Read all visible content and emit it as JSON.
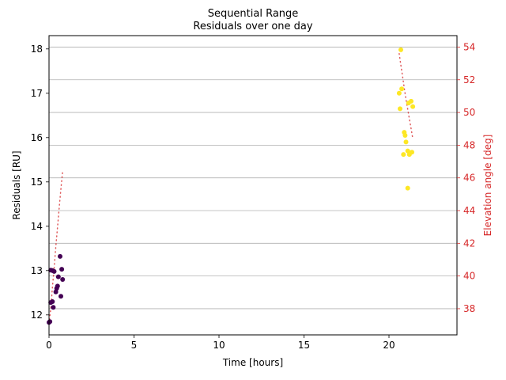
{
  "chart_data": {
    "type": "scatter",
    "title": "Sequential Range",
    "subtitle": "Residuals over one day",
    "xlabel": "Time [hours]",
    "ylabel": "Residuals [RU]",
    "y2label": "Elevation angle [deg]",
    "xlim": [
      0,
      24
    ],
    "ylim": [
      11.55,
      18.3
    ],
    "y2lim": [
      36.4,
      54.7
    ],
    "xticks": [
      "0",
      "5",
      "10",
      "15",
      "20"
    ],
    "xtick_values": [
      0,
      5,
      10,
      15,
      20
    ],
    "yticks": [
      "12",
      "13",
      "14",
      "15",
      "16",
      "17",
      "18"
    ],
    "ytick_values": [
      12,
      13,
      14,
      15,
      16,
      17,
      18
    ],
    "y2ticks": [
      "38",
      "40",
      "42",
      "44",
      "46",
      "48",
      "50",
      "52",
      "54"
    ],
    "y2tick_values": [
      38,
      40,
      42,
      44,
      46,
      48,
      50,
      52,
      54
    ],
    "grid": "y2-major",
    "colors": {
      "pass1": "#440154",
      "pass2": "#fde725",
      "elevation": "#d62728",
      "grid": "#b0b0b0",
      "axis": "#000000"
    },
    "series": [
      {
        "kind": "residuals-pass-1",
        "points": [
          [
            0.0,
            11.83
          ],
          [
            0.05,
            11.85
          ],
          [
            0.1,
            12.28
          ],
          [
            0.2,
            12.3
          ],
          [
            0.25,
            12.17
          ],
          [
            0.1,
            13.01
          ],
          [
            0.2,
            13.0
          ],
          [
            0.3,
            12.98
          ],
          [
            0.4,
            12.52
          ],
          [
            0.45,
            12.6
          ],
          [
            0.5,
            12.65
          ],
          [
            0.55,
            12.86
          ],
          [
            0.65,
            13.32
          ],
          [
            0.7,
            12.42
          ],
          [
            0.75,
            13.03
          ],
          [
            0.8,
            12.8
          ]
        ]
      },
      {
        "kind": "residuals-pass-2",
        "points": [
          [
            20.7,
            17.98
          ],
          [
            20.6,
            17.0
          ],
          [
            20.75,
            17.1
          ],
          [
            20.65,
            16.65
          ],
          [
            20.9,
            16.12
          ],
          [
            20.95,
            16.05
          ],
          [
            21.0,
            15.9
          ],
          [
            21.1,
            15.7
          ],
          [
            20.85,
            15.62
          ],
          [
            21.2,
            15.62
          ],
          [
            21.35,
            15.67
          ],
          [
            21.15,
            16.78
          ],
          [
            21.3,
            16.82
          ],
          [
            21.4,
            16.7
          ],
          [
            21.1,
            14.86
          ]
        ]
      },
      {
        "kind": "elevation-pass-1",
        "points": [
          [
            0.0,
            37.1
          ],
          [
            0.1,
            38.0
          ],
          [
            0.2,
            39.3
          ],
          [
            0.3,
            40.5
          ],
          [
            0.4,
            41.8
          ],
          [
            0.5,
            43.0
          ],
          [
            0.6,
            44.2
          ],
          [
            0.7,
            45.3
          ],
          [
            0.8,
            46.4
          ]
        ]
      },
      {
        "kind": "elevation-pass-2",
        "points": [
          [
            20.6,
            53.6
          ],
          [
            20.7,
            52.9
          ],
          [
            20.8,
            52.2
          ],
          [
            20.9,
            51.5
          ],
          [
            21.0,
            50.8
          ],
          [
            21.1,
            50.2
          ],
          [
            21.2,
            49.6
          ],
          [
            21.3,
            49.0
          ],
          [
            21.4,
            48.4
          ]
        ]
      }
    ]
  }
}
